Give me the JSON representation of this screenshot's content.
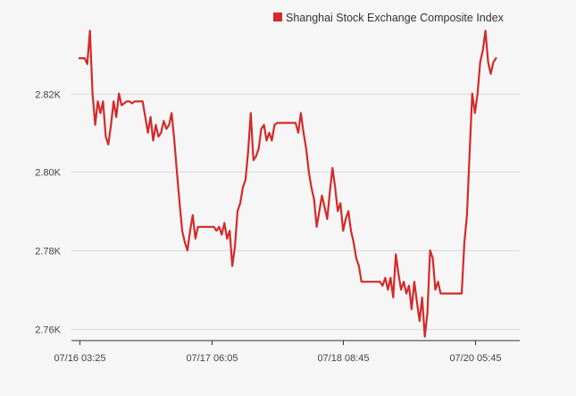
{
  "chart_data": {
    "type": "line",
    "title": "",
    "xlabel": "",
    "ylabel": "",
    "legend_position": "top-right",
    "grid": true,
    "ylim": [
      2.757,
      2.837
    ],
    "y_ticks": [
      {
        "value": 2.76,
        "label": "2.76K"
      },
      {
        "value": 2.78,
        "label": "2.78K"
      },
      {
        "value": 2.8,
        "label": "2.80K"
      },
      {
        "value": 2.82,
        "label": "2.82K"
      }
    ],
    "x_ticks": [
      {
        "index": 0,
        "label": "07/16 03:25"
      },
      {
        "index": 50,
        "label": "07/17 06:05"
      },
      {
        "index": 100,
        "label": "07/18 08:45"
      },
      {
        "index": 150,
        "label": "07/20 05:45"
      }
    ],
    "x_range": [
      -3,
      167
    ],
    "series": [
      {
        "name": "Shanghai Stock Exchange Composite Index",
        "color": "#d42a2a",
        "values": [
          2.829,
          2.829,
          2.829,
          2.8275,
          2.836,
          2.82,
          2.812,
          2.818,
          2.815,
          2.818,
          2.809,
          2.807,
          2.812,
          2.818,
          2.814,
          2.82,
          2.817,
          2.8175,
          2.818,
          2.818,
          2.8175,
          2.818,
          2.818,
          2.818,
          2.818,
          2.814,
          2.81,
          2.814,
          2.808,
          2.812,
          2.809,
          2.81,
          2.813,
          2.811,
          2.812,
          2.815,
          2.808,
          2.8,
          2.792,
          2.785,
          2.782,
          2.78,
          2.785,
          2.789,
          2.783,
          2.786,
          2.786,
          2.786,
          2.786,
          2.786,
          2.786,
          2.786,
          2.785,
          2.786,
          2.784,
          2.787,
          2.783,
          2.785,
          2.776,
          2.781,
          2.79,
          2.792,
          2.796,
          2.798,
          2.805,
          2.815,
          2.803,
          2.804,
          2.806,
          2.811,
          2.812,
          2.808,
          2.81,
          2.808,
          2.812,
          2.8125,
          2.8125,
          2.8125,
          2.8125,
          2.8125,
          2.8125,
          2.8125,
          2.8125,
          2.81,
          2.815,
          2.81,
          2.806,
          2.8,
          2.796,
          2.793,
          2.786,
          2.79,
          2.794,
          2.791,
          2.788,
          2.795,
          2.801,
          2.796,
          2.79,
          2.792,
          2.785,
          2.788,
          2.79,
          2.785,
          2.782,
          2.778,
          2.776,
          2.772,
          2.772,
          2.772,
          2.772,
          2.772,
          2.772,
          2.772,
          2.772,
          2.771,
          2.773,
          2.77,
          2.773,
          2.768,
          2.779,
          2.774,
          2.77,
          2.772,
          2.769,
          2.771,
          2.765,
          2.772,
          2.767,
          2.762,
          2.768,
          2.758,
          2.764,
          2.78,
          2.778,
          2.77,
          2.772,
          2.769,
          2.769,
          2.769,
          2.769,
          2.769,
          2.769,
          2.769,
          2.769,
          2.769,
          2.782,
          2.789,
          2.805,
          2.82,
          2.815,
          2.82,
          2.828,
          2.831,
          2.836,
          2.828,
          2.825,
          2.828,
          2.829
        ]
      }
    ]
  }
}
